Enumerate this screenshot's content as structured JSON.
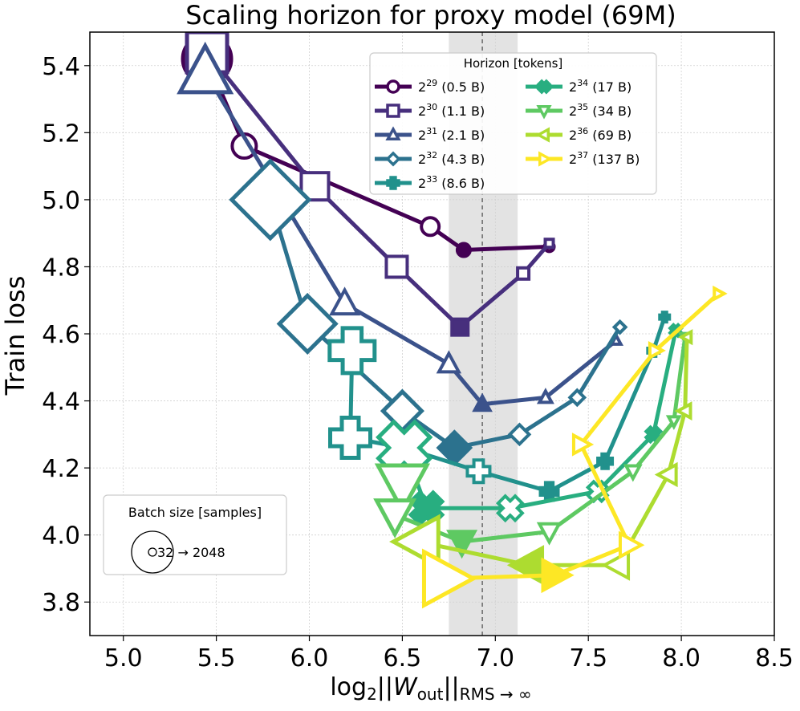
{
  "chart_data": {
    "type": "line",
    "title": "Scaling horizon for proxy model (69M)",
    "xlabel_base": "log",
    "xlabel_base_sub": "2",
    "xlabel_body": "||W",
    "xlabel_w_sub": "out",
    "xlabel_bars": "||",
    "xlabel_norm_sub": "RMS → ∞",
    "ylabel": "Train loss",
    "xlim": [
      4.82,
      8.5
    ],
    "ylim": [
      3.7,
      5.5
    ],
    "xticks": [
      "5.0",
      "5.5",
      "6.0",
      "6.5",
      "7.0",
      "7.5",
      "8.0",
      "8.5"
    ],
    "xtick_values": [
      5.0,
      5.5,
      6.0,
      6.5,
      7.0,
      7.5,
      8.0,
      8.5
    ],
    "yticks": [
      "3.8",
      "4.0",
      "4.2",
      "4.4",
      "4.6",
      "4.8",
      "5.0",
      "5.2",
      "5.4"
    ],
    "ytick_values": [
      3.8,
      4.0,
      4.2,
      4.4,
      4.6,
      4.8,
      5.0,
      5.2,
      5.4
    ],
    "grid": true,
    "reference_line_x": 6.93,
    "shaded_band_x": [
      6.75,
      7.12
    ],
    "legend": {
      "title": "Horizon [tokens]",
      "placement": "top-right"
    },
    "size_legend": {
      "title": "Batch size [samples]",
      "text": "32 → 2048",
      "placement": "bottom-left"
    },
    "series": [
      {
        "exp": "29",
        "suffix": "(0.5 B)",
        "color": "#440154",
        "marker": "circle",
        "points": [
          [
            5.45,
            5.42
          ],
          [
            5.65,
            5.16
          ],
          [
            6.65,
            4.92
          ],
          [
            6.83,
            4.85
          ],
          [
            7.29,
            4.86
          ],
          [
            7.29,
            4.86
          ]
        ],
        "sizes": [
          60,
          30,
          22,
          16,
          12,
          10
        ],
        "filled": [
          false,
          false,
          false,
          true,
          false,
          false
        ]
      },
      {
        "exp": "30",
        "suffix": "(1.1 B)",
        "color": "#472f7d",
        "marker": "square",
        "points": [
          [
            5.45,
            5.44
          ],
          [
            6.03,
            5.04
          ],
          [
            6.47,
            4.8
          ],
          [
            6.81,
            4.62
          ],
          [
            7.15,
            4.78
          ],
          [
            7.29,
            4.87
          ]
        ],
        "sizes": [
          50,
          34,
          26,
          20,
          14,
          10
        ],
        "filled": [
          false,
          false,
          false,
          true,
          false,
          false
        ]
      },
      {
        "exp": "31",
        "suffix": "(2.1 B)",
        "color": "#3b528b",
        "marker": "triangle-up",
        "points": [
          [
            5.44,
            5.38
          ],
          [
            6.19,
            4.69
          ],
          [
            6.75,
            4.51
          ],
          [
            6.93,
            4.39
          ],
          [
            7.27,
            4.41
          ],
          [
            7.65,
            4.58
          ]
        ],
        "sizes": [
          66,
          34,
          26,
          20,
          16,
          12
        ],
        "filled": [
          false,
          false,
          false,
          true,
          false,
          false
        ]
      },
      {
        "exp": "32",
        "suffix": "(4.3 B)",
        "color": "#2c728e",
        "marker": "diamond",
        "points": [
          [
            5.79,
            5.0
          ],
          [
            5.99,
            4.63
          ],
          [
            6.5,
            4.37
          ],
          [
            6.78,
            4.26
          ],
          [
            7.13,
            4.3
          ],
          [
            7.44,
            4.41
          ],
          [
            7.67,
            4.62
          ]
        ],
        "sizes": [
          96,
          70,
          48,
          40,
          24,
          18,
          14
        ],
        "filled": [
          false,
          false,
          false,
          true,
          false,
          false,
          false
        ]
      },
      {
        "exp": "33",
        "suffix": "(8.6 B)",
        "color": "#21918c",
        "marker": "plus",
        "points": [
          [
            6.23,
            4.55
          ],
          [
            6.22,
            4.29
          ],
          [
            6.51,
            4.26
          ],
          [
            6.91,
            4.19
          ],
          [
            7.29,
            4.13
          ],
          [
            7.59,
            4.22
          ],
          [
            7.85,
            4.55
          ],
          [
            7.91,
            4.65
          ]
        ],
        "sizes": [
          56,
          50,
          40,
          28,
          22,
          18,
          14,
          12
        ],
        "filled": [
          false,
          false,
          false,
          false,
          true,
          true,
          true,
          true
        ]
      },
      {
        "exp": "34",
        "suffix": "(17 B)",
        "color": "#28ae80",
        "marker": "x",
        "points": [
          [
            6.51,
            4.26
          ],
          [
            6.63,
            4.08
          ],
          [
            7.08,
            4.08
          ],
          [
            7.55,
            4.13
          ],
          [
            7.85,
            4.3
          ],
          [
            7.97,
            4.61
          ]
        ],
        "sizes": [
          64,
          40,
          30,
          24,
          18,
          14
        ],
        "filled": [
          false,
          true,
          false,
          false,
          true,
          true
        ]
      },
      {
        "exp": "35",
        "suffix": "(34 B)",
        "color": "#5ec962",
        "marker": "triangle-down",
        "points": [
          [
            6.5,
            4.15
          ],
          [
            6.46,
            4.06
          ],
          [
            6.82,
            3.98
          ],
          [
            7.29,
            4.01
          ],
          [
            7.74,
            4.19
          ],
          [
            7.96,
            4.34
          ],
          [
            8.02,
            4.59
          ]
        ],
        "sizes": [
          64,
          48,
          34,
          26,
          18,
          14,
          12
        ],
        "filled": [
          false,
          false,
          true,
          false,
          false,
          false,
          false
        ]
      },
      {
        "exp": "36",
        "suffix": "(69 B)",
        "color": "#addc30",
        "marker": "triangle-left",
        "points": [
          [
            6.59,
            3.98
          ],
          [
            7.18,
            3.91
          ],
          [
            7.66,
            3.91
          ],
          [
            7.93,
            4.18
          ],
          [
            8.02,
            4.37
          ],
          [
            8.03,
            4.59
          ]
        ],
        "sizes": [
          64,
          44,
          34,
          26,
          18,
          14
        ],
        "filled": [
          false,
          true,
          false,
          false,
          false,
          false
        ]
      },
      {
        "exp": "37",
        "suffix": "(137 B)",
        "color": "#fde725",
        "marker": "triangle-right",
        "points": [
          [
            6.73,
            3.87
          ],
          [
            7.32,
            3.88
          ],
          [
            7.72,
            3.97
          ],
          [
            7.46,
            4.27
          ],
          [
            7.86,
            4.55
          ],
          [
            8.2,
            4.72
          ]
        ],
        "sizes": [
          70,
          40,
          30,
          24,
          18,
          14
        ],
        "filled": [
          false,
          true,
          false,
          false,
          false,
          false
        ]
      }
    ]
  }
}
